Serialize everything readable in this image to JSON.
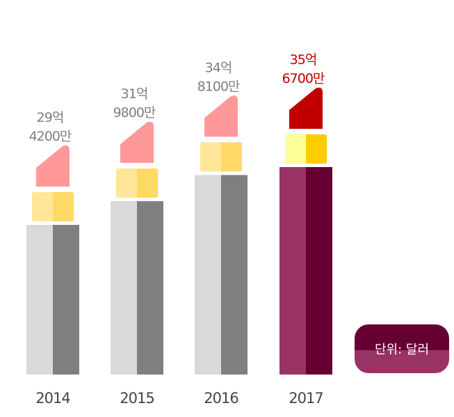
{
  "chart_data": {
    "type": "bar",
    "title": "",
    "xlabel": "",
    "ylabel": "",
    "categories": [
      "2014",
      "2015",
      "2016",
      "2017"
    ],
    "values": [
      2942000000,
      3198000000,
      3481000000,
      3567000000
    ],
    "value_labels": [
      {
        "line1": "29억",
        "line2": "4200만"
      },
      {
        "line1": "31억",
        "line2": "9800만"
      },
      {
        "line1": "34억",
        "line2": "8100만"
      },
      {
        "line1": "35억",
        "line2": "6700만"
      }
    ],
    "unit_note": "단위: 달러",
    "highlight_index": 3,
    "legend": "none",
    "grid": false
  },
  "colors": {
    "tube_light": "#d9d9d9",
    "tube_dark": "#7f7f7f",
    "tube_light_hl": "#993366",
    "tube_dark_hl": "#660033",
    "cap_light": "#ffe699",
    "cap_dark": "#ffd966",
    "cap_light_hl": "#ffff99",
    "cap_dark_hl": "#ffcc00",
    "tip": "#ff9999",
    "tip_hl": "#c00000",
    "label": "#7f7f7f",
    "label_hl": "#c00000",
    "unit_top": "#660033",
    "unit_bottom": "#993366"
  }
}
